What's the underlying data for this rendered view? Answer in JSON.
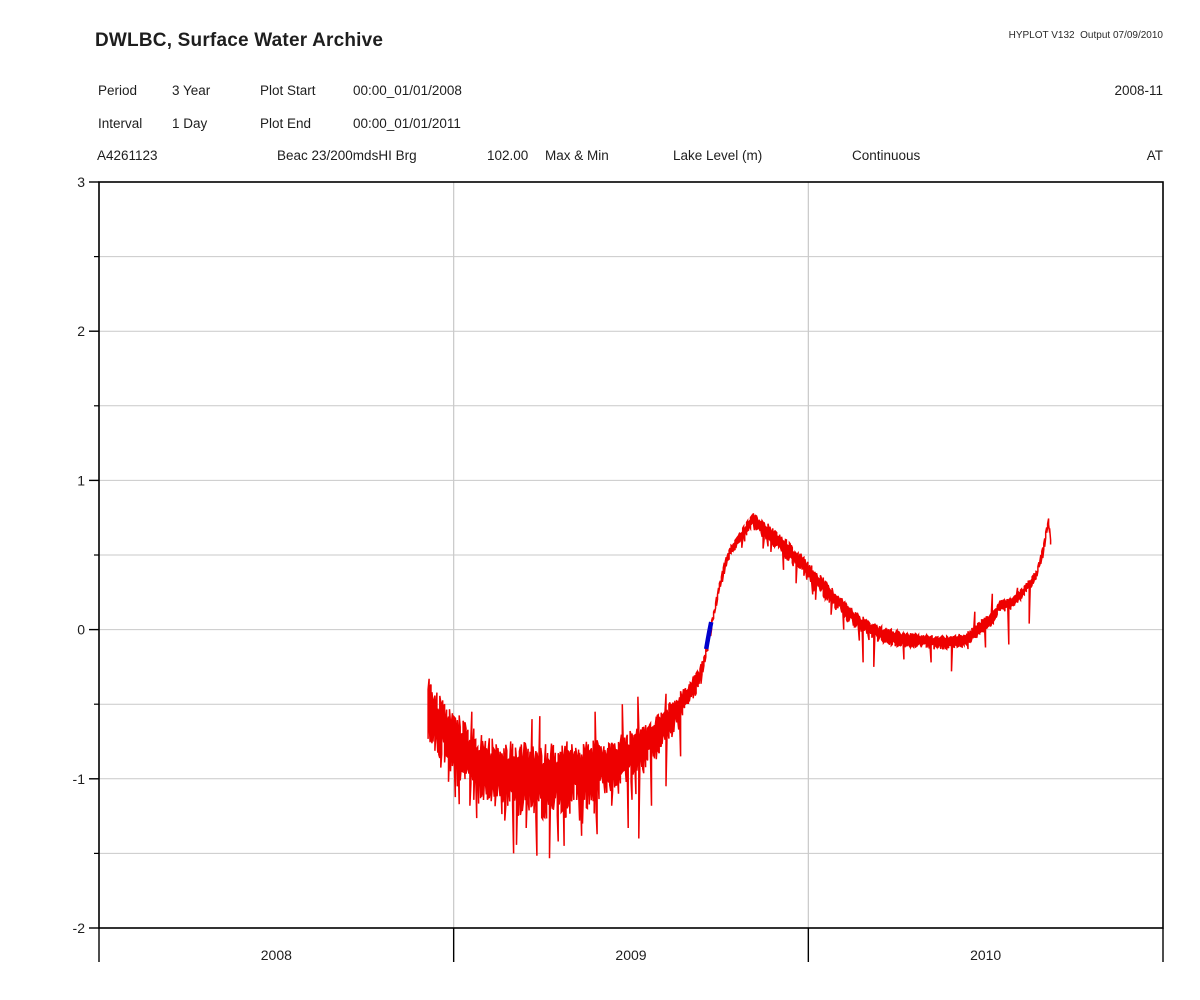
{
  "header": {
    "title": "DWLBC, Surface Water Archive",
    "version_output": "HYPLOT V132  Output 07/09/2010",
    "rows": {
      "period_label": "Period",
      "period_value": "3 Year",
      "plot_start_label": "Plot Start",
      "plot_start_value": "00:00_01/01/2008",
      "interval_label": "Interval",
      "interval_value": "1 Day",
      "plot_end_label": "Plot End",
      "plot_end_value": "00:00_01/01/2011",
      "page_code": "2008-11"
    },
    "station": {
      "id": "A4261123",
      "name": "Beac 23/200mdsHI Brg",
      "elevation": "102.00",
      "statistic": "Max & Min",
      "variable": "Lake Level (m)",
      "trace_type": "Continuous",
      "quality_code": "AT"
    }
  },
  "chart_data": {
    "type": "line",
    "title": "Lake Level (m), daily Max & Min, station A4261123",
    "xlabel": "",
    "ylabel": "Lake Level (m)",
    "x_axis": {
      "range_years": [
        2008,
        2011
      ],
      "tick_labels": [
        "2008",
        "2009",
        "2010"
      ],
      "year_boundary_gridlines": [
        2009,
        2010
      ]
    },
    "y_axis": {
      "range": [
        -2,
        3
      ],
      "major_ticks": [
        3,
        2,
        1,
        0,
        -1,
        -2
      ],
      "minor_tick_step": 0.5,
      "grid": true
    },
    "grid_color": "#c9c9c9",
    "axis_color": "#000000",
    "series": [
      {
        "name": "lake-level-max-min-envelope",
        "color": "#ee0000",
        "style": "daily max-min bars",
        "start_year": 2008.928,
        "end_year": 2010.684,
        "seed": 987654321,
        "trend_points": [
          [
            2008.928,
            -0.5
          ],
          [
            2008.955,
            -0.6
          ],
          [
            2009.0,
            -0.72
          ],
          [
            2009.04,
            -0.82
          ],
          [
            2009.09,
            -0.92
          ],
          [
            2009.15,
            -0.95
          ],
          [
            2009.25,
            -0.97
          ],
          [
            2009.35,
            -0.95
          ],
          [
            2009.43,
            -0.9
          ],
          [
            2009.5,
            -0.83
          ],
          [
            2009.55,
            -0.75
          ],
          [
            2009.6,
            -0.62
          ],
          [
            2009.65,
            -0.47
          ],
          [
            2009.69,
            -0.32
          ],
          [
            2009.705,
            -0.22
          ],
          [
            2009.715,
            -0.1
          ],
          [
            2009.725,
            0.02
          ],
          [
            2009.735,
            0.12
          ],
          [
            2009.75,
            0.3
          ],
          [
            2009.765,
            0.44
          ],
          [
            2009.78,
            0.53
          ],
          [
            2009.8,
            0.6
          ],
          [
            2009.825,
            0.68
          ],
          [
            2009.845,
            0.74
          ],
          [
            2009.86,
            0.7
          ],
          [
            2009.885,
            0.66
          ],
          [
            2009.91,
            0.6
          ],
          [
            2009.95,
            0.52
          ],
          [
            2010.0,
            0.4
          ],
          [
            2010.04,
            0.3
          ],
          [
            2010.08,
            0.2
          ],
          [
            2010.12,
            0.1
          ],
          [
            2010.16,
            0.03
          ],
          [
            2010.2,
            -0.02
          ],
          [
            2010.26,
            -0.055
          ],
          [
            2010.32,
            -0.07
          ],
          [
            2010.4,
            -0.08
          ],
          [
            2010.45,
            -0.05
          ],
          [
            2010.475,
            0.0
          ],
          [
            2010.5,
            0.05
          ],
          [
            2010.52,
            0.08
          ],
          [
            2010.535,
            0.16
          ],
          [
            2010.575,
            0.18
          ],
          [
            2010.6,
            0.24
          ],
          [
            2010.625,
            0.31
          ],
          [
            2010.645,
            0.38
          ],
          [
            2010.66,
            0.52
          ],
          [
            2010.67,
            0.64
          ],
          [
            2010.678,
            0.74
          ],
          [
            2010.684,
            0.55
          ]
        ],
        "noise_amplitude_points": [
          [
            2008.928,
            0.13
          ],
          [
            2009.05,
            0.16
          ],
          [
            2009.3,
            0.17
          ],
          [
            2009.48,
            0.13
          ],
          [
            2009.6,
            0.09
          ],
          [
            2009.68,
            0.05
          ],
          [
            2009.71,
            0.025
          ],
          [
            2009.75,
            0.02
          ],
          [
            2009.8,
            0.025
          ],
          [
            2009.86,
            0.04
          ],
          [
            2009.95,
            0.05
          ],
          [
            2010.05,
            0.045
          ],
          [
            2010.15,
            0.04
          ],
          [
            2010.3,
            0.035
          ],
          [
            2010.5,
            0.03
          ],
          [
            2010.684,
            0.02
          ]
        ],
        "down_spikes": [
          [
            2008.985,
            -1.02
          ],
          [
            2009.045,
            -1.18
          ],
          [
            2009.105,
            -1.15
          ],
          [
            2009.145,
            -1.28
          ],
          [
            2009.168,
            -1.5
          ],
          [
            2009.205,
            -1.33
          ],
          [
            2009.252,
            -1.27
          ],
          [
            2009.31,
            -1.45
          ],
          [
            2009.355,
            -1.28
          ],
          [
            2009.402,
            -1.22
          ],
          [
            2009.445,
            -1.18
          ],
          [
            2009.492,
            -1.33
          ],
          [
            2009.523,
            -1.4
          ],
          [
            2009.558,
            -1.18
          ],
          [
            2009.6,
            -1.05
          ],
          [
            2009.64,
            -0.85
          ],
          [
            2009.93,
            0.4
          ],
          [
            2009.965,
            0.31
          ],
          [
            2010.02,
            0.2
          ],
          [
            2010.065,
            0.1
          ],
          [
            2010.1,
            0.0
          ],
          [
            2010.155,
            -0.22
          ],
          [
            2010.185,
            -0.25
          ],
          [
            2010.27,
            -0.2
          ],
          [
            2010.345,
            -0.22
          ],
          [
            2010.405,
            -0.28
          ],
          [
            2010.5,
            -0.12
          ],
          [
            2010.565,
            -0.1
          ],
          [
            2010.623,
            0.04
          ]
        ],
        "up_spikes": [
          [
            2008.932,
            -0.33
          ],
          [
            2009.05,
            -0.55
          ],
          [
            2009.22,
            -0.6
          ],
          [
            2009.244,
            -0.58
          ],
          [
            2009.4,
            -0.55
          ],
          [
            2009.475,
            -0.5
          ],
          [
            2009.52,
            -0.45
          ],
          [
            2009.6,
            -0.43
          ],
          [
            2010.47,
            0.12
          ],
          [
            2010.52,
            0.24
          ],
          [
            2010.59,
            0.28
          ]
        ]
      },
      {
        "name": "quality-flagged-segment",
        "color": "#0000cc",
        "style": "thick line",
        "points": [
          [
            2009.712,
            -0.13
          ],
          [
            2009.717,
            -0.06
          ],
          [
            2009.721,
            -0.01
          ],
          [
            2009.726,
            0.05
          ]
        ]
      }
    ]
  }
}
